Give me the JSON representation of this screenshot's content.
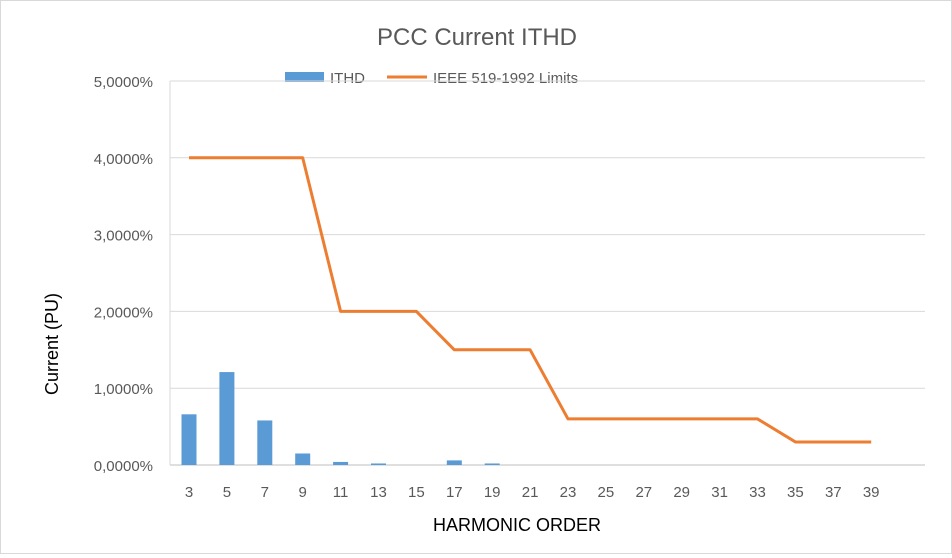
{
  "chart_data": {
    "type": "bar",
    "title": "PCC Current ITHD",
    "xlabel": "HARMONIC ORDER",
    "ylabel": "Current (PU)",
    "ylim": [
      0,
      5
    ],
    "y_ticks": [
      0,
      1,
      2,
      3,
      4,
      5
    ],
    "y_tick_labels": [
      "0,0000%",
      "1,0000%",
      "2,0000%",
      "3,0000%",
      "4,0000%",
      "5,0000%"
    ],
    "categories": [
      "3",
      "5",
      "7",
      "9",
      "11",
      "13",
      "15",
      "17",
      "19",
      "21",
      "23",
      "25",
      "27",
      "29",
      "31",
      "33",
      "35",
      "37",
      "39"
    ],
    "grid": true,
    "legend_position": "top",
    "series": [
      {
        "name": "ITHD",
        "type": "bar",
        "color": "#5b9bd5",
        "values": [
          0.66,
          1.21,
          0.58,
          0.15,
          0.04,
          0.02,
          0.0,
          0.06,
          0.02,
          0,
          0,
          0,
          0,
          0,
          0,
          0,
          0,
          0,
          0
        ]
      },
      {
        "name": "IEEE 519-1992 Limits",
        "type": "line",
        "color": "#ed7d31",
        "values": [
          4,
          4,
          4,
          4,
          2,
          2,
          2,
          1.5,
          1.5,
          1.5,
          0.6,
          0.6,
          0.6,
          0.6,
          0.6,
          0.6,
          0.3,
          0.3,
          0.3
        ]
      }
    ]
  }
}
